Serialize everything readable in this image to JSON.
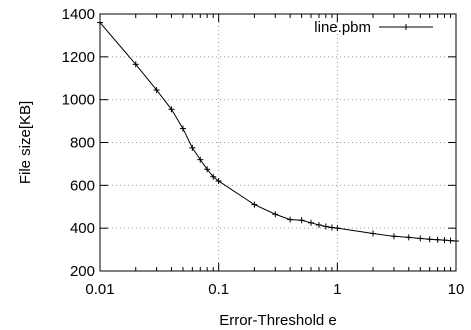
{
  "chart_data": {
    "type": "line",
    "title": "",
    "xlabel": "Error-Threshold e",
    "ylabel": "File size[KB]",
    "xscale": "log",
    "xlim": [
      0.01,
      10
    ],
    "ylim": [
      200,
      1400
    ],
    "grid": true,
    "grid_style": "dotted",
    "legend_position": "top-right",
    "x_ticks": [
      {
        "value": 0.01,
        "label": "0.01"
      },
      {
        "value": 0.1,
        "label": "0.1"
      },
      {
        "value": 1,
        "label": "1"
      },
      {
        "value": 10,
        "label": "10"
      }
    ],
    "y_ticks": [
      {
        "value": 200,
        "label": "200"
      },
      {
        "value": 400,
        "label": "400"
      },
      {
        "value": 600,
        "label": "600"
      },
      {
        "value": 800,
        "label": "800"
      },
      {
        "value": 1000,
        "label": "1000"
      },
      {
        "value": 1200,
        "label": "1200"
      },
      {
        "value": 1400,
        "label": "1400"
      }
    ],
    "series": [
      {
        "name": "line.pbm",
        "color": "#000000",
        "marker": "plus",
        "x": [
          0.01,
          0.02,
          0.03,
          0.04,
          0.05,
          0.06,
          0.07,
          0.08,
          0.09,
          0.1,
          0.2,
          0.3,
          0.4,
          0.5,
          0.6,
          0.7,
          0.8,
          0.9,
          1,
          2,
          3,
          4,
          5,
          6,
          7,
          8,
          9,
          10
        ],
        "y": [
          1360,
          1165,
          1045,
          955,
          865,
          775,
          720,
          675,
          640,
          620,
          510,
          465,
          440,
          437,
          425,
          415,
          408,
          403,
          400,
          375,
          362,
          357,
          352,
          348,
          346,
          344,
          342,
          340
        ]
      }
    ]
  }
}
